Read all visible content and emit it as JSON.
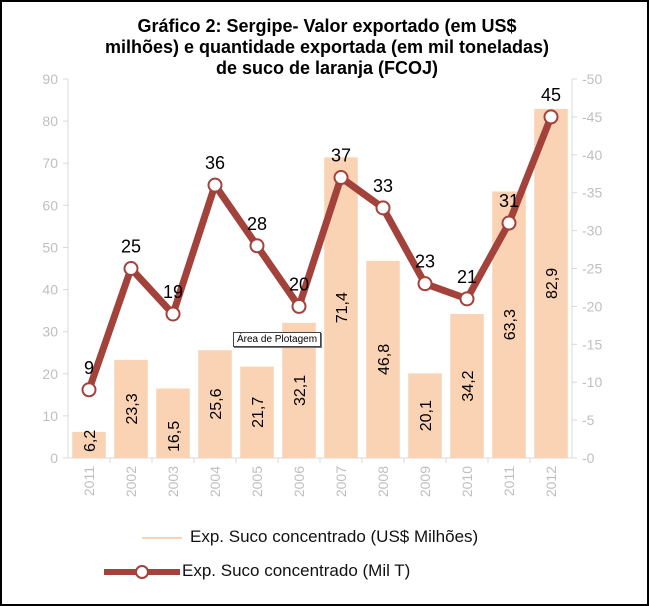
{
  "chart_data": {
    "type": "bar+line",
    "title_lines": [
      "Gráfico 2: Sergipe- Valor exportado (em US$",
      "milhões) e quantidade exportada (em mil toneladas)",
      "de suco de laranja (FCOJ)"
    ],
    "categories": [
      "2011",
      "2002",
      "2003",
      "2004",
      "2005",
      "2006",
      "2007",
      "2008",
      "2009",
      "2010",
      "2011",
      "2012"
    ],
    "series": [
      {
        "name": "Exp. Suco concentrado (US$ Milhões)",
        "type": "bar",
        "axis": "left",
        "values": [
          6.2,
          23.3,
          16.5,
          25.6,
          21.7,
          32.1,
          71.4,
          46.8,
          20.1,
          34.2,
          63.3,
          82.9
        ],
        "labels": [
          "6,2",
          "23,3",
          "16,5",
          "25,6",
          "21,7",
          "32,1",
          "71,4",
          "46,8",
          "20,1",
          "34,2",
          "63,3",
          "82,9"
        ],
        "color": "#FAD3B5"
      },
      {
        "name": "Exp. Suco concentrado (Mil T)",
        "type": "line",
        "axis": "right",
        "values": [
          9,
          25,
          19,
          36,
          28,
          20,
          37,
          33,
          23,
          21,
          31,
          45
        ],
        "labels": [
          "9",
          "25",
          "19",
          "36",
          "28",
          "20",
          "37",
          "33",
          "23",
          "21",
          "31",
          "45"
        ],
        "color": "#A3413B"
      }
    ],
    "left_axis": {
      "ylim": [
        0,
        90
      ],
      "ticks": [
        "0",
        "10",
        "20",
        "30",
        "40",
        "50",
        "60",
        "70",
        "80",
        "90"
      ]
    },
    "right_axis": {
      "ylim": [
        0,
        50
      ],
      "ticks": [
        "0",
        "5",
        "10",
        "15",
        "20",
        "25",
        "30",
        "35",
        "40",
        "45",
        "50"
      ]
    },
    "legend_position": "bottom",
    "grid": false
  },
  "tooltip": "Área de Plotagem"
}
